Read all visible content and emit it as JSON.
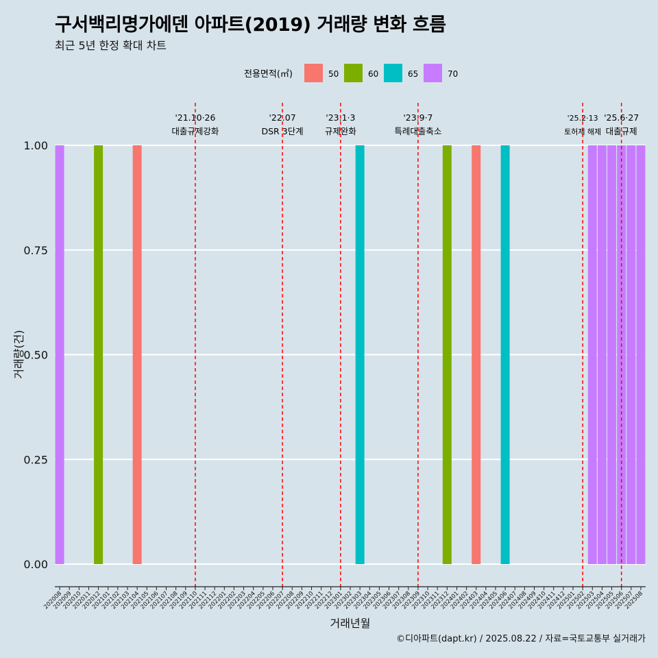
{
  "title": "구서백리명가에덴 아파트(2019) 거래량 변화 흐름",
  "subtitle": "최근 5년 한정 확대 차트",
  "footer": "©디아파트(dapt.kr) / 2025.08.22 / 자료=국토교통부 실거래가",
  "colors": {
    "background": "#d7e3ea",
    "grid": "#ffffff",
    "event_line": "#ff0000"
  },
  "chart_data": {
    "type": "bar",
    "xlabel": "거래년월",
    "ylabel": "거래량(건)",
    "ylim": [
      0,
      1
    ],
    "y_ticks": [
      "0.00",
      "0.25",
      "0.50",
      "0.75",
      "1.00"
    ],
    "legend": {
      "title": "전용면적(㎡)",
      "position": "top",
      "items": [
        {
          "label": "50",
          "color": "#f8766d"
        },
        {
          "label": "60",
          "color": "#7cae00"
        },
        {
          "label": "65",
          "color": "#00bfc4"
        },
        {
          "label": "70",
          "color": "#c77cff"
        }
      ]
    },
    "categories": [
      "202008",
      "202009",
      "202010",
      "202011",
      "202012",
      "202101",
      "202102",
      "202103",
      "202104",
      "202105",
      "202106",
      "202107",
      "202108",
      "202109",
      "202110",
      "202111",
      "202112",
      "202201",
      "202202",
      "202203",
      "202204",
      "202205",
      "202206",
      "202207",
      "202208",
      "202209",
      "202210",
      "202211",
      "202212",
      "202301",
      "202302",
      "202303",
      "202304",
      "202305",
      "202306",
      "202307",
      "202308",
      "202309",
      "202310",
      "202311",
      "202312",
      "202401",
      "202402",
      "202403",
      "202404",
      "202405",
      "202406",
      "202407",
      "202408",
      "202409",
      "202410",
      "202411",
      "202412",
      "202501",
      "202502",
      "202503",
      "202504",
      "202505",
      "202506",
      "202507",
      "202508"
    ],
    "bars": [
      {
        "month": "202008",
        "area": "70",
        "value": 1
      },
      {
        "month": "202012",
        "area": "60",
        "value": 1
      },
      {
        "month": "202104",
        "area": "50",
        "value": 1
      },
      {
        "month": "202303",
        "area": "65",
        "value": 1
      },
      {
        "month": "202312",
        "area": "60",
        "value": 1
      },
      {
        "month": "202403",
        "area": "50",
        "value": 1
      },
      {
        "month": "202406",
        "area": "65",
        "value": 1
      },
      {
        "month": "202503",
        "area": "70",
        "value": 1
      },
      {
        "month": "202504",
        "area": "70",
        "value": 1
      },
      {
        "month": "202505",
        "area": "70",
        "value": 1
      },
      {
        "month": "202506",
        "area": "70",
        "value": 1
      },
      {
        "month": "202507",
        "area": "70",
        "value": 1
      },
      {
        "month": "202508",
        "area": "70",
        "value": 1
      }
    ],
    "events": [
      {
        "month": "202110",
        "date": "'21.10·26",
        "label": "대출규제강화",
        "size": "normal"
      },
      {
        "month": "202207",
        "date": "'22.07",
        "label": "DSR 3단계",
        "size": "normal"
      },
      {
        "month": "202301",
        "date": "'23.1·3",
        "label": "규제완화",
        "size": "normal"
      },
      {
        "month": "202309",
        "date": "'23.9·7",
        "label": "특례대출축소",
        "size": "normal"
      },
      {
        "month": "202502",
        "date": "'25.2·13",
        "label": "토허제 해제",
        "size": "small"
      },
      {
        "month": "202506",
        "date": "'25.6·27",
        "label": "대출규제",
        "size": "normal"
      }
    ]
  }
}
